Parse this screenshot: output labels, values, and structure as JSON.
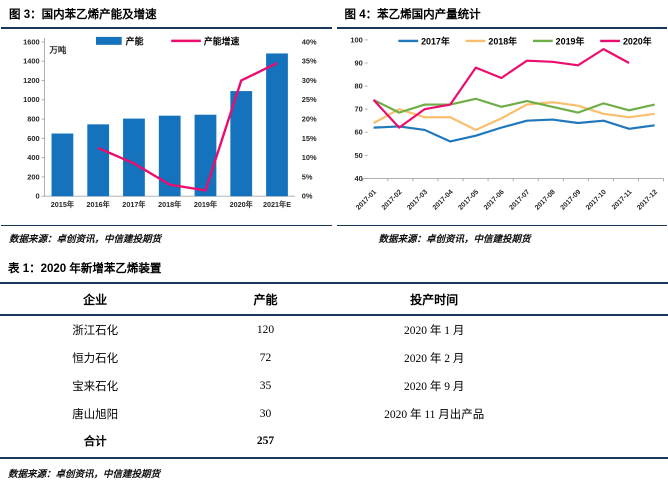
{
  "colors": {
    "rule_navy": "#17375D",
    "capacity_bar_blue": "#1473BC",
    "growth_line_pink": "#EB0D6E",
    "series_2017_blue": "#1F77BC",
    "series_2018_orange": "#FBBE6D",
    "series_2019_green": "#6FAD46",
    "series_2020_pink": "#EB0D6E",
    "axis_gray": "#A6A6A6"
  },
  "chart_data": [
    {
      "type": "bar",
      "title": "图 3：国内苯乙烯产能及增速",
      "unit_label": "万吨",
      "categories": [
        "2015年",
        "2016年",
        "2017年",
        "2018年",
        "2019年",
        "2020年",
        "2021年E"
      ],
      "series": [
        {
          "name": "产能",
          "type": "bar",
          "axis": "left",
          "color": "#1473BC",
          "values": [
            650,
            745,
            805,
            835,
            845,
            1090,
            1480
          ]
        },
        {
          "name": "产能增速",
          "type": "line",
          "axis": "right",
          "color": "#EB0D6E",
          "values": [
            null,
            12.5,
            8.5,
            3,
            1.5,
            30,
            34.5
          ]
        }
      ],
      "left_axis": {
        "min": 0,
        "max": 1600,
        "step": 200
      },
      "right_axis": {
        "min": 0,
        "max": 40,
        "step": 5,
        "suffix": "%"
      },
      "grid": false,
      "legend_position": "top"
    },
    {
      "type": "line",
      "title": "图 4：苯乙烯国内产量统计",
      "categories": [
        "2017-01",
        "2017-02",
        "2017-03",
        "2017-04",
        "2017-05",
        "2017-06",
        "2017-07",
        "2017-08",
        "2017-09",
        "2017-10",
        "2017-11",
        "2017-12"
      ],
      "series": [
        {
          "name": "2017年",
          "color": "#1F77BC",
          "values": [
            62,
            62.5,
            61,
            56,
            58.5,
            62,
            65,
            65.5,
            64,
            65,
            61.5,
            63
          ]
        },
        {
          "name": "2018年",
          "color": "#FBBE6D",
          "values": [
            64,
            70,
            66.5,
            66.5,
            61,
            66,
            72,
            73,
            71.5,
            68,
            66.5,
            68
          ]
        },
        {
          "name": "2019年",
          "color": "#6FAD46",
          "values": [
            74,
            68.5,
            72,
            72,
            74.5,
            71,
            73.5,
            71,
            68.5,
            72.5,
            69.5,
            72
          ]
        },
        {
          "name": "2020年",
          "color": "#EB0D6E",
          "values": [
            74,
            62,
            70,
            72,
            88,
            83.5,
            91,
            90.5,
            89,
            96,
            90,
            null
          ]
        }
      ],
      "y_axis": {
        "min": 40,
        "max": 100,
        "step": 10
      },
      "grid": false,
      "legend_position": "top"
    }
  ],
  "figures": [
    {
      "source": "数据来源：卓创资讯，中信建投期货"
    },
    {
      "source": "数据来源：卓创资讯，中信建投期货"
    }
  ],
  "table": {
    "title": "表 1：2020 年新增苯乙烯装置",
    "columns": [
      "企业",
      "产能",
      "投产时间"
    ],
    "rows": [
      [
        "浙江石化",
        "120",
        "2020 年 1 月"
      ],
      [
        "恒力石化",
        "72",
        "2020 年 2 月"
      ],
      [
        "宝来石化",
        "35",
        "2020 年 9 月"
      ],
      [
        "唐山旭阳",
        "30",
        "2020 年 11 月出产品"
      ],
      [
        "合计",
        "257",
        ""
      ]
    ],
    "source": "数据来源：卓创资讯，中信建投期货"
  }
}
